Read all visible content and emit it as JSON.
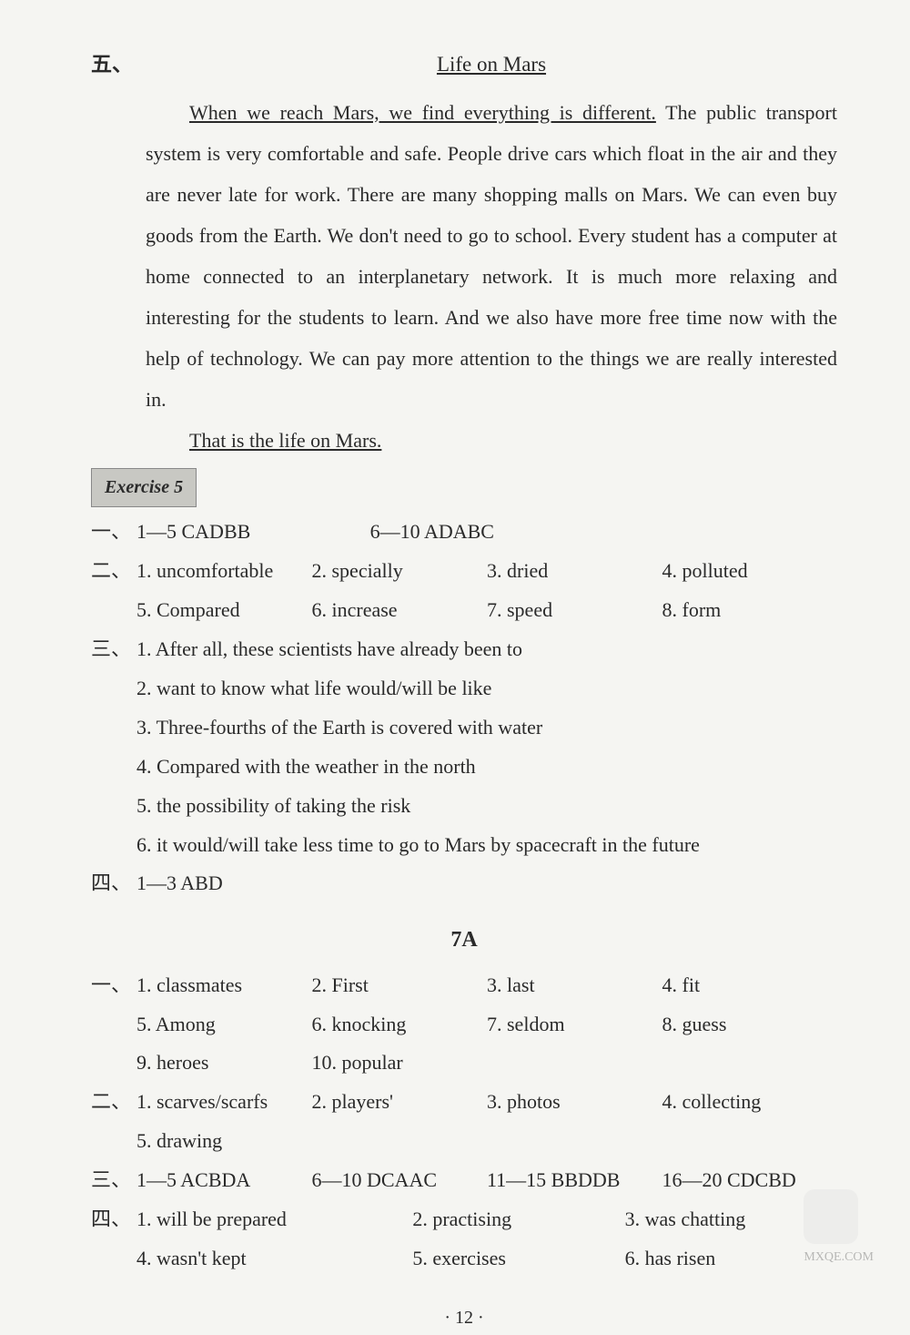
{
  "page": {
    "section_five_label": "五、",
    "title": "Life on Mars",
    "essay_p1_underlined": "When we reach Mars, we find everything is different.",
    "essay_p1_rest": " The public transport system is very comfortable and safe. People drive cars which float in the air and they are never late for work. There are many shopping malls on Mars. We can even buy goods from the Earth. We don't need to go to school. Every student has a computer at home connected to an interplanetary network. It is much more relaxing and interesting for the students to learn. And we also have more free time now with the help of technology. We can pay more attention to the things we are really interested in.",
    "essay_p2_underlined": "That is the life on Mars.",
    "exercise_label": "Exercise 5",
    "ex5": {
      "one_label": "一、",
      "one_a": "1—5 CADBB",
      "one_b": "6—10 ADABC",
      "two_label": "二、",
      "two_1": "1. uncomfortable",
      "two_2": "2. specially",
      "two_3": "3. dried",
      "two_4": "4. polluted",
      "two_5": "5. Compared",
      "two_6": "6. increase",
      "two_7": "7. speed",
      "two_8": "8. form",
      "three_label": "三、",
      "three_1": "1. After all, these scientists have already been to",
      "three_2": "2. want to know what life would/will be like",
      "three_3": "3. Three-fourths of the Earth is covered with water",
      "three_4": "4. Compared with the weather in the north",
      "three_5": "5. the possibility of taking the risk",
      "three_6": "6. it would/will take less time to go to Mars by spacecraft in the future",
      "four_label": "四、",
      "four_a": "1—3 ABD"
    },
    "section_7a": "7A",
    "s7a": {
      "one_label": "一、",
      "one_1": "1. classmates",
      "one_2": "2. First",
      "one_3": "3. last",
      "one_4": "4. fit",
      "one_5": "5. Among",
      "one_6": "6. knocking",
      "one_7": "7. seldom",
      "one_8": "8. guess",
      "one_9": "9. heroes",
      "one_10": "10. popular",
      "two_label": "二、",
      "two_1": "1. scarves/scarfs",
      "two_2": "2. players'",
      "two_3": "3. photos",
      "two_4": "4. collecting",
      "two_5": "5. drawing",
      "three_label": "三、",
      "three_a": "1—5 ACBDA",
      "three_b": "6—10 DCAAC",
      "three_c": "11—15 BBDDB",
      "three_d": "16—20 CDCBD",
      "four_label": "四、",
      "four_1": "1. will be prepared",
      "four_2": "2. practising",
      "four_3": "3. was chatting",
      "four_4": "4. wasn't kept",
      "four_5": "5. exercises",
      "four_6": "6. has risen"
    },
    "page_num": "· 12 ·",
    "watermark": "MXQE.COM"
  },
  "style": {
    "background_color": "#f5f5f2",
    "text_color": "#2a2a2a",
    "body_fontsize": 22,
    "line_height": 1.85,
    "exercise_box_bg": "#c8c8c3"
  }
}
